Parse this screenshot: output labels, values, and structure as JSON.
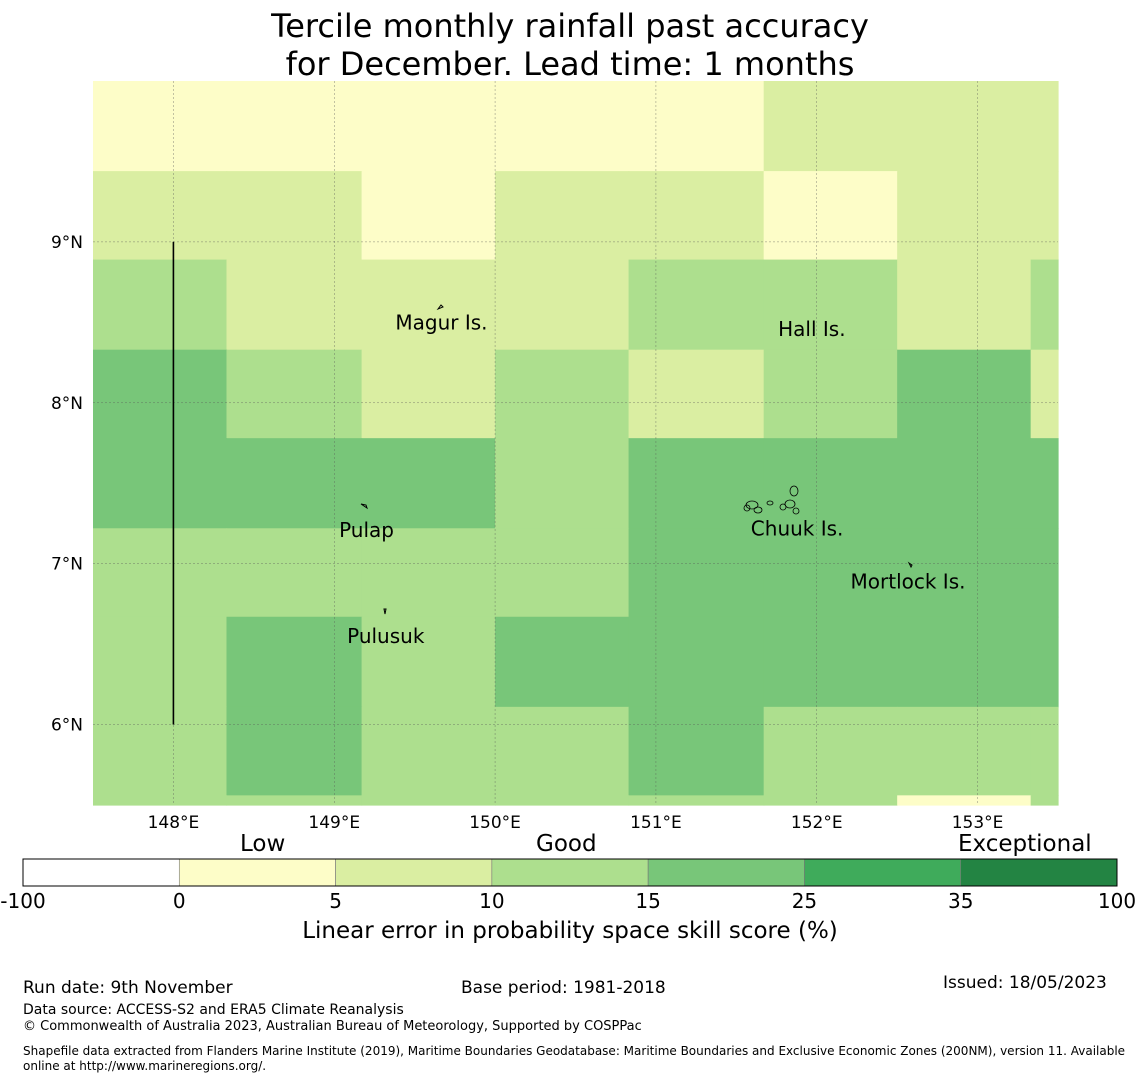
{
  "title": {
    "line1": "Tercile monthly rainfall past accuracy",
    "line2": "for December. Lead time: 1 months"
  },
  "map": {
    "lon_range": [
      147.5,
      153.5
    ],
    "lat_range": [
      5.5,
      10.0
    ],
    "lon_ticks": [
      {
        "value": 148,
        "label": "148°E"
      },
      {
        "value": 149,
        "label": "149°E"
      },
      {
        "value": 150,
        "label": "150°E"
      },
      {
        "value": 151,
        "label": "151°E"
      },
      {
        "value": 152,
        "label": "152°E"
      },
      {
        "value": 153,
        "label": "153°E"
      }
    ],
    "lat_ticks": [
      {
        "value": 9,
        "label": "9°N"
      },
      {
        "value": 8,
        "label": "8°N"
      },
      {
        "value": 7,
        "label": "7°N"
      },
      {
        "value": 6,
        "label": "6°N"
      }
    ],
    "grid": {
      "lon_edges": [
        147.5,
        148.33,
        149.17,
        150.0,
        150.83,
        151.67,
        152.5,
        153.33,
        153.5
      ],
      "lat_edges": [
        10.0,
        9.44,
        8.89,
        8.33,
        7.78,
        7.22,
        6.67,
        6.11,
        5.56,
        5.5
      ],
      "categories": [
        [
          1,
          1,
          1,
          1,
          1,
          2,
          2,
          2
        ],
        [
          2,
          2,
          1,
          2,
          2,
          1,
          2,
          2
        ],
        [
          3,
          2,
          2,
          2,
          3,
          3,
          2,
          3
        ],
        [
          4,
          3,
          2,
          3,
          2,
          3,
          4,
          2
        ],
        [
          4,
          4,
          4,
          3,
          4,
          4,
          4,
          4
        ],
        [
          3,
          3,
          3,
          3,
          4,
          4,
          4,
          4
        ],
        [
          3,
          4,
          3,
          4,
          4,
          4,
          4,
          4
        ],
        [
          3,
          4,
          3,
          3,
          4,
          3,
          3,
          3
        ],
        [
          3,
          3,
          3,
          3,
          3,
          3,
          1,
          3
        ]
      ],
      "category_colors": [
        "#ffffff",
        "#fdfdc8",
        "#daeea2",
        "#addf8e",
        "#78c679",
        "#3fab5b",
        "#238443"
      ]
    },
    "places": [
      {
        "name": "Magur Is.",
        "lon": 149.38,
        "lat": 8.5
      },
      {
        "name": "Hall Is.",
        "lon": 151.76,
        "lat": 8.46
      },
      {
        "name": "Pulap",
        "lon": 149.03,
        "lat": 7.21
      },
      {
        "name": "Chuuk Is.",
        "lon": 151.59,
        "lat": 7.22
      },
      {
        "name": "Mortlock Is.",
        "lon": 152.21,
        "lat": 6.89
      },
      {
        "name": "Pulusuk",
        "lon": 149.08,
        "lat": 6.55
      }
    ],
    "boundary_line": {
      "lon": 148.0,
      "lat_from": 9.0,
      "lat_to": 6.0
    }
  },
  "colorbar": {
    "categories": [
      {
        "label": "Low"
      },
      {
        "label": "Good"
      },
      {
        "label": "Exceptional"
      }
    ],
    "ticks": [
      "-100",
      "0",
      "5",
      "10",
      "15",
      "25",
      "35",
      "100"
    ],
    "colors": [
      "#ffffff",
      "#fdfdc8",
      "#daeea2",
      "#addf8e",
      "#78c679",
      "#3fab5b",
      "#238443"
    ],
    "label": "Linear error in probability space skill score (%)"
  },
  "footer": {
    "run_date": "Run date: 9th November",
    "base_period": "Base period: 1981-2018",
    "issued": "Issued: 18/05/2023",
    "data_source": "Data source: ACCESS-S2 and ERA5 Climate Reanalysis",
    "copyright": "© Commonwealth of Australia 2023, Australian Bureau of Meteorology, Supported by COSPPac",
    "shapefile_line1": "Shapefile data extracted from Flanders Marine Institute (2019), Maritime Boundaries Geodatabase: Maritime Boundaries and Exclusive Economic Zones (200NM), version 11. Available",
    "shapefile_line2": "online at http://www.marineregions.org/."
  }
}
